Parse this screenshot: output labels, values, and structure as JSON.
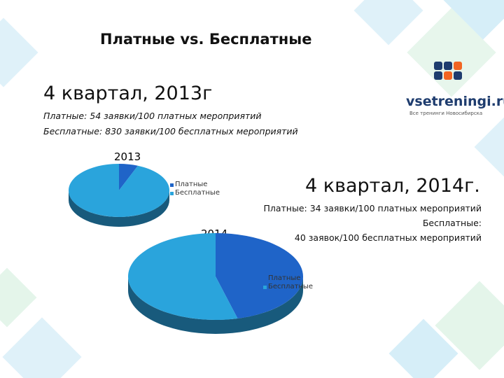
{
  "slide": {
    "title": "Платные vs. Бесплатные",
    "section_2013": {
      "heading": "4 квартал, 2013г",
      "line1": "Платные: 54 заявки/100 платных мероприятий",
      "line2": "Бесплатные: 830 заявки/100 бесплатных мероприятий"
    },
    "section_2014": {
      "heading": "4 квартал, 2014г.",
      "line1": "Платные: 34 заявки/100 платных мероприятий",
      "line2": "Бесплатные:",
      "line3": "40 заявок/100 бесплатных мероприятий"
    }
  },
  "logo": {
    "name": "vsetreningi.ru",
    "tagline": "Все тренинги Новосибирска",
    "colors": [
      "#1e3c6e",
      "#f26522",
      "#1e3c6e",
      "#1e3c6e"
    ]
  },
  "colors": {
    "paid": "#1f64c8",
    "free": "#2aa4dc",
    "side": "#185a7c",
    "side_paid": "#134a8c"
  },
  "chart_data": [
    {
      "type": "pie",
      "title": "2013",
      "categories": [
        "Платные",
        "Бесплатные"
      ],
      "values": [
        54,
        830
      ],
      "legend": "right"
    },
    {
      "type": "pie",
      "title": "2014",
      "categories": [
        "Платные",
        "Бесплатные"
      ],
      "values": [
        34,
        40
      ],
      "legend": "right"
    }
  ]
}
